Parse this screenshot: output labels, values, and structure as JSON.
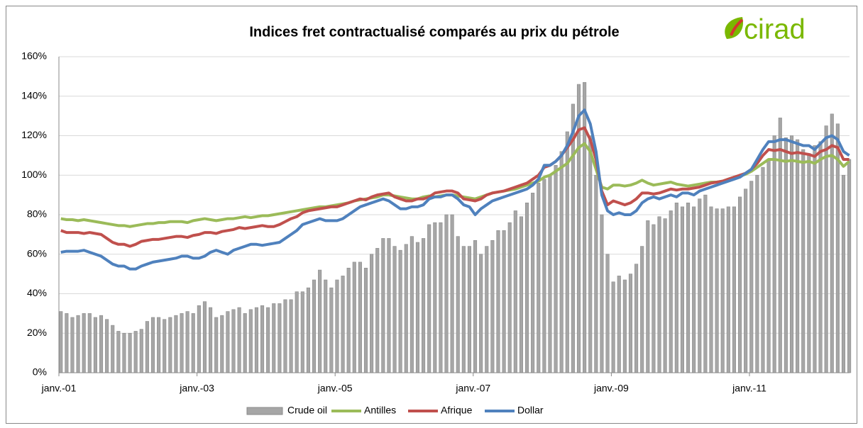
{
  "chart_data": {
    "type": "bar-line",
    "title": "Indices fret contractualisé comparés au prix du pétrole",
    "logo": "cirad",
    "categories": [
      "janv.-01",
      null,
      null,
      null,
      null,
      null,
      null,
      null,
      null,
      null,
      null,
      null,
      null,
      null,
      null,
      null,
      null,
      null,
      null,
      null,
      null,
      null,
      null,
      null,
      "janv.-03",
      null,
      null,
      null,
      null,
      null,
      null,
      null,
      null,
      null,
      null,
      null,
      null,
      null,
      null,
      null,
      null,
      null,
      null,
      null,
      null,
      null,
      null,
      null,
      "janv.-05",
      null,
      null,
      null,
      null,
      null,
      null,
      null,
      null,
      null,
      null,
      null,
      null,
      null,
      null,
      null,
      null,
      null,
      null,
      null,
      null,
      null,
      null,
      null,
      "janv.-07",
      null,
      null,
      null,
      null,
      null,
      null,
      null,
      null,
      null,
      null,
      null,
      null,
      null,
      null,
      null,
      null,
      null,
      null,
      null,
      null,
      null,
      null,
      null,
      "janv.-09",
      null,
      null,
      null,
      null,
      null,
      null,
      null,
      null,
      null,
      null,
      null,
      null,
      null,
      null,
      null,
      null,
      null,
      null,
      null,
      null,
      null,
      null,
      null,
      "janv.-11",
      null,
      null,
      null,
      null,
      null,
      null,
      null,
      null,
      null,
      null,
      null,
      null,
      null,
      null,
      null,
      null,
      null
    ],
    "series": [
      {
        "name": "Crude oil",
        "type": "bar",
        "color": "#a6a6a6",
        "values": [
          31,
          30,
          28,
          29,
          30,
          30,
          28,
          29,
          27,
          24,
          21,
          20,
          20,
          21,
          22,
          26,
          28,
          28,
          27,
          28,
          29,
          30,
          31,
          30,
          34,
          36,
          33,
          28,
          29,
          31,
          32,
          33,
          30,
          32,
          33,
          34,
          33,
          35,
          35,
          37,
          37,
          41,
          41,
          43,
          47,
          52,
          47,
          43,
          47,
          49,
          53,
          56,
          56,
          53,
          60,
          63,
          68,
          68,
          64,
          62,
          65,
          69,
          66,
          68,
          75,
          76,
          76,
          80,
          80,
          69,
          64,
          64,
          67,
          60,
          64,
          67,
          72,
          72,
          76,
          82,
          79,
          86,
          91,
          96,
          98,
          100,
          105,
          112,
          122,
          136,
          146,
          147,
          120,
          100,
          80,
          60,
          46,
          49,
          47,
          50,
          55,
          64,
          77,
          75,
          79,
          78,
          82,
          86,
          84,
          86,
          84,
          88,
          90,
          84,
          83,
          83,
          84,
          84,
          89,
          93,
          97,
          100,
          104,
          108,
          120,
          129,
          119,
          120,
          118,
          113,
          111,
          115,
          117,
          125,
          131,
          126,
          100,
          108
        ]
      },
      {
        "name": "Antilles",
        "type": "line",
        "color": "#9bbb59",
        "values": [
          78,
          77.5,
          77.5,
          77,
          77.5,
          77,
          76.5,
          76,
          75.5,
          75,
          74.5,
          74.5,
          74,
          74.5,
          75,
          75.5,
          75.5,
          76,
          76,
          76.5,
          76.5,
          76.5,
          76,
          77,
          77.5,
          78,
          77.5,
          77,
          77.5,
          78,
          78,
          78.5,
          79,
          78.5,
          79,
          79.5,
          79.5,
          80,
          80.5,
          81,
          81.5,
          82,
          82.5,
          83,
          83.5,
          84,
          84,
          84.5,
          85,
          85.5,
          86,
          87,
          87.5,
          88,
          88.5,
          89,
          90,
          90,
          89.5,
          89,
          88.5,
          88,
          88,
          89,
          89.5,
          89,
          89.5,
          90,
          90,
          89.5,
          89,
          88.5,
          88,
          89,
          90,
          91,
          91.5,
          92,
          92.5,
          93,
          94,
          95,
          96,
          97,
          99,
          100,
          102,
          104,
          106,
          110,
          114,
          116,
          112,
          103,
          94,
          93,
          95,
          95,
          94.5,
          95,
          96,
          97.5,
          96,
          95,
          95.5,
          96,
          96.5,
          95.5,
          95,
          94.5,
          95,
          95.5,
          96,
          96.5,
          96.5,
          97,
          98,
          99,
          99.5,
          100.5,
          102,
          104,
          106,
          108,
          108,
          107.5,
          107,
          107.5,
          107,
          106.5,
          107,
          106,
          108,
          109.5,
          110,
          108,
          104.5,
          107
        ]
      },
      {
        "name": "Afrique",
        "type": "line",
        "color": "#c0504d",
        "values": [
          72,
          71,
          71,
          71,
          70.5,
          71,
          70.5,
          70,
          68,
          66,
          65,
          65,
          64,
          65,
          66.5,
          67,
          67.5,
          67.5,
          68,
          68.5,
          69,
          69,
          68.5,
          69.5,
          70,
          71,
          71,
          70.5,
          71.5,
          72,
          72.5,
          73.5,
          73,
          73.5,
          74,
          74.5,
          74,
          74,
          75,
          76.5,
          78,
          79,
          81,
          82,
          82.5,
          83,
          83.5,
          84,
          84,
          85,
          86,
          87,
          88,
          87.5,
          89,
          90,
          90.5,
          91,
          89,
          88,
          87,
          87,
          88,
          88,
          89,
          91,
          91.5,
          92,
          92,
          91,
          88,
          87.5,
          87,
          88,
          90,
          91,
          91.5,
          92,
          93,
          94,
          95,
          96,
          98,
          100,
          104,
          105,
          107,
          110,
          114,
          118,
          123,
          124,
          118,
          108,
          92,
          85,
          87,
          86,
          85,
          86,
          88,
          91,
          91,
          90.5,
          91,
          92,
          93,
          92.5,
          93,
          93,
          93.5,
          94,
          95,
          96,
          96.5,
          97,
          98,
          99,
          100,
          101,
          103,
          106,
          110,
          113,
          112.5,
          113,
          112,
          111,
          111.5,
          111,
          110.5,
          109.5,
          112,
          113,
          115,
          114,
          108,
          108
        ]
      },
      {
        "name": "Dollar",
        "type": "line",
        "color": "#4f81bd",
        "values": [
          61,
          61.5,
          61.5,
          61.5,
          62,
          61,
          60,
          59,
          57,
          55,
          54,
          54,
          52.5,
          52.5,
          54,
          55,
          56,
          56.5,
          57,
          57.5,
          58,
          59,
          59,
          58,
          58,
          59,
          61,
          62,
          61,
          60,
          62,
          63,
          64,
          65,
          65,
          64.5,
          65,
          65.5,
          66,
          68,
          70,
          72,
          75,
          76,
          77,
          78,
          77,
          77,
          77,
          78,
          80,
          82,
          84,
          85,
          86,
          87,
          88,
          87,
          85,
          83,
          83,
          84,
          84,
          85,
          88,
          89,
          89,
          90,
          90,
          88,
          85,
          84,
          80,
          83,
          85,
          87,
          88,
          89,
          90,
          91,
          92,
          93,
          95,
          98,
          105,
          105,
          107,
          110,
          115,
          122,
          130,
          133,
          126,
          112,
          90,
          82,
          80,
          81,
          80,
          80,
          82,
          86,
          88,
          89,
          88,
          89,
          90,
          89,
          91,
          91,
          90,
          92,
          93,
          94,
          95,
          96,
          97,
          98,
          99,
          101,
          103,
          108,
          113,
          117,
          117,
          118,
          118,
          117,
          116,
          115,
          115,
          113,
          116,
          119,
          120,
          118,
          112,
          110
        ]
      }
    ],
    "ylim": [
      0,
      160
    ],
    "yticks": [
      {
        "value": 0,
        "label": "0%"
      },
      {
        "value": 20,
        "label": "20%"
      },
      {
        "value": 40,
        "label": "40%"
      },
      {
        "value": 60,
        "label": "60%"
      },
      {
        "value": 80,
        "label": "80%"
      },
      {
        "value": 100,
        "label": "100%"
      },
      {
        "value": 120,
        "label": "120%"
      },
      {
        "value": 140,
        "label": "140%"
      },
      {
        "value": 160,
        "label": "160%"
      }
    ],
    "grid": true,
    "legend": "bottom"
  }
}
